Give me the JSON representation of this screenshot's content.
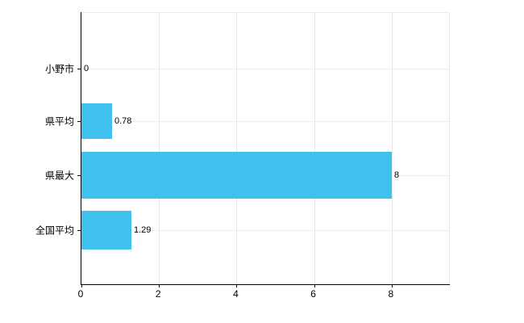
{
  "chart_data": {
    "type": "bar",
    "orientation": "horizontal",
    "title": "",
    "xlabel": "",
    "ylabel": "",
    "categories": [
      "小野市",
      "県平均",
      "県最大",
      "全国平均"
    ],
    "values": [
      0,
      0.78,
      8,
      1.29
    ],
    "value_labels": [
      "0",
      "0.78",
      "8",
      "1.29"
    ],
    "x_ticks": [
      0,
      2,
      4,
      6,
      8
    ],
    "x_tick_labels": [
      "0",
      "2",
      "4",
      "6",
      "8"
    ],
    "xlim": [
      0,
      9.5
    ],
    "grid": "on",
    "legend": "none",
    "bar_color": "#3fc1ef",
    "axis_color": "#000000",
    "gridline_color": "#e6e6e6",
    "background_color": "#ffffff"
  }
}
